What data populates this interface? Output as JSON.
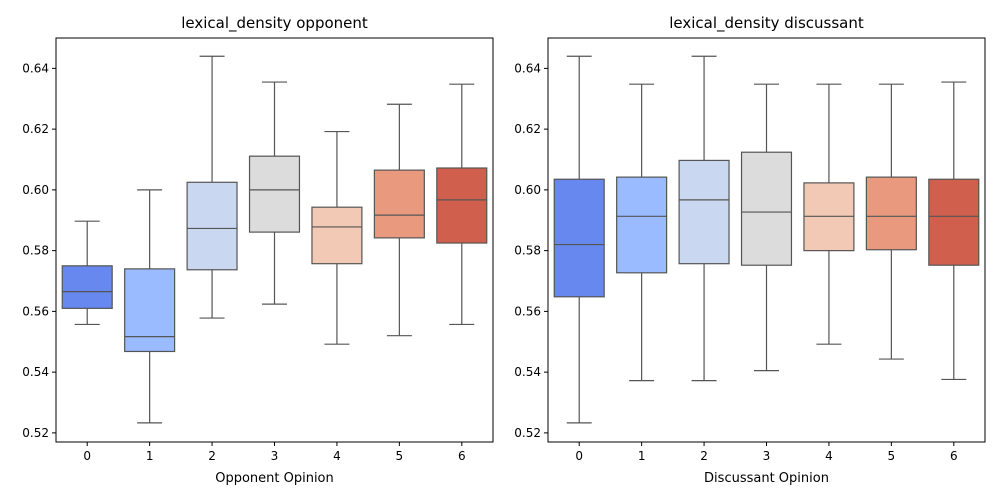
{
  "chart_data": [
    {
      "type": "box",
      "title": "lexical_density opponent",
      "xlabel": "Opponent Opinion",
      "ylabel": "",
      "categories": [
        "0",
        "1",
        "2",
        "3",
        "4",
        "5",
        "6"
      ],
      "ylim": [
        0.517,
        0.65
      ],
      "yticks": [
        0.52,
        0.54,
        0.56,
        0.58,
        0.6,
        0.62,
        0.64
      ],
      "ytick_labels": [
        "0.52",
        "0.54",
        "0.56",
        "0.58",
        "0.60",
        "0.62",
        "0.64"
      ],
      "grid": false,
      "legend": "none",
      "colors": [
        "#6788ee",
        "#9abbff",
        "#c9d7f0",
        "#dddcdc",
        "#f2c9b4",
        "#e8997e",
        "#d0604d"
      ],
      "boxes": [
        {
          "category": "0",
          "whisker_low": 0.5557,
          "q1": 0.561,
          "median": 0.5665,
          "q3": 0.575,
          "whisker_high": 0.5897
        },
        {
          "category": "1",
          "whisker_low": 0.5233,
          "q1": 0.5468,
          "median": 0.5517,
          "q3": 0.574,
          "whisker_high": 0.6
        },
        {
          "category": "2",
          "whisker_low": 0.5578,
          "q1": 0.5737,
          "median": 0.5873,
          "q3": 0.6025,
          "whisker_high": 0.644
        },
        {
          "category": "3",
          "whisker_low": 0.5624,
          "q1": 0.5861,
          "median": 0.6,
          "q3": 0.6111,
          "whisker_high": 0.6355
        },
        {
          "category": "4",
          "whisker_low": 0.5492,
          "q1": 0.5757,
          "median": 0.5878,
          "q3": 0.5943,
          "whisker_high": 0.6192
        },
        {
          "category": "5",
          "whisker_low": 0.552,
          "q1": 0.5842,
          "median": 0.5917,
          "q3": 0.6065,
          "whisker_high": 0.6282
        },
        {
          "category": "6",
          "whisker_low": 0.5557,
          "q1": 0.5825,
          "median": 0.5967,
          "q3": 0.6072,
          "whisker_high": 0.6348
        }
      ]
    },
    {
      "type": "box",
      "title": "lexical_density discussant",
      "xlabel": "Discussant Opinion",
      "ylabel": "",
      "categories": [
        "0",
        "1",
        "2",
        "3",
        "4",
        "5",
        "6"
      ],
      "ylim": [
        0.517,
        0.65
      ],
      "yticks": [
        0.52,
        0.54,
        0.56,
        0.58,
        0.6,
        0.62,
        0.64
      ],
      "ytick_labels": [
        "0.52",
        "0.54",
        "0.56",
        "0.58",
        "0.60",
        "0.62",
        "0.64"
      ],
      "grid": false,
      "legend": "none",
      "colors": [
        "#6788ee",
        "#9abbff",
        "#c9d7f0",
        "#dddcdc",
        "#f2c9b4",
        "#e8997e",
        "#d0604d"
      ],
      "boxes": [
        {
          "category": "0",
          "whisker_low": 0.5233,
          "q1": 0.5648,
          "median": 0.582,
          "q3": 0.6035,
          "whisker_high": 0.644
        },
        {
          "category": "1",
          "whisker_low": 0.5372,
          "q1": 0.5727,
          "median": 0.5913,
          "q3": 0.6042,
          "whisker_high": 0.6348
        },
        {
          "category": "2",
          "whisker_low": 0.5372,
          "q1": 0.5757,
          "median": 0.5967,
          "q3": 0.6097,
          "whisker_high": 0.644
        },
        {
          "category": "3",
          "whisker_low": 0.5405,
          "q1": 0.5752,
          "median": 0.5927,
          "q3": 0.6124,
          "whisker_high": 0.6348
        },
        {
          "category": "4",
          "whisker_low": 0.5492,
          "q1": 0.58,
          "median": 0.5913,
          "q3": 0.6023,
          "whisker_high": 0.6348
        },
        {
          "category": "5",
          "whisker_low": 0.5443,
          "q1": 0.5803,
          "median": 0.5913,
          "q3": 0.6042,
          "whisker_high": 0.6348
        },
        {
          "category": "6",
          "whisker_low": 0.5376,
          "q1": 0.5752,
          "median": 0.5913,
          "q3": 0.6035,
          "whisker_high": 0.6355
        }
      ]
    }
  ]
}
